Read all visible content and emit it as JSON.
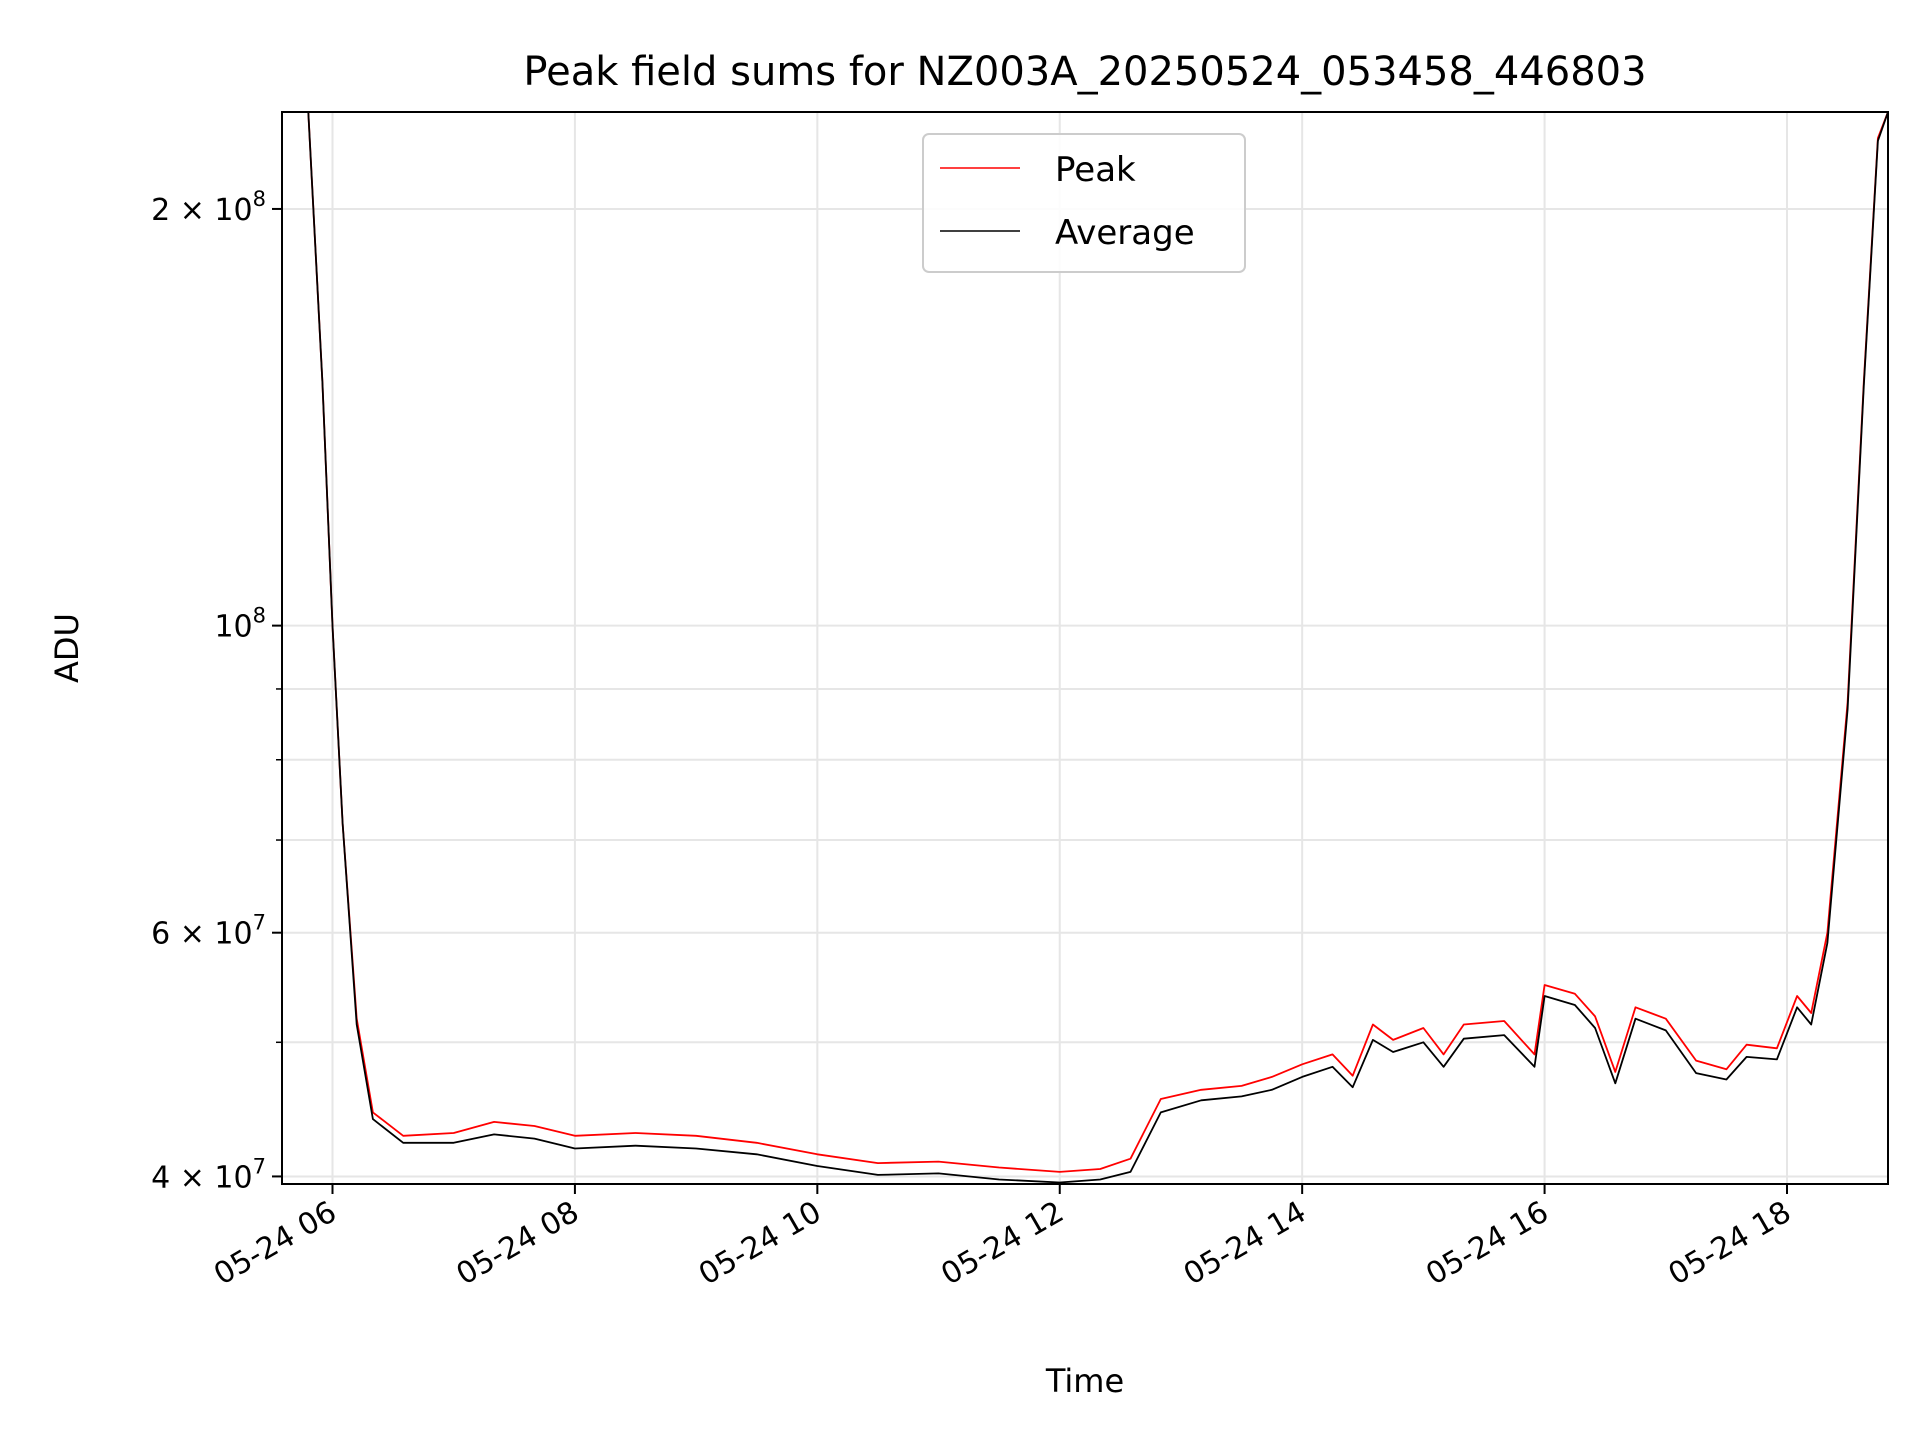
{
  "chart_data": {
    "type": "line",
    "title": "Peak field sums for NZ003A_20250524_053458_446803",
    "xlabel": "Time",
    "ylabel": "ADU",
    "x_scale": "time",
    "y_scale": "log",
    "xlim": [
      "2025-05-24 05:35",
      "2025-05-24 18:50"
    ],
    "ylim": [
      39500000,
      235000000
    ],
    "x_ticks": [
      {
        "value": "2025-05-24 06:00",
        "label": "05-24 06"
      },
      {
        "value": "2025-05-24 08:00",
        "label": "05-24 08"
      },
      {
        "value": "2025-05-24 10:00",
        "label": "05-24 10"
      },
      {
        "value": "2025-05-24 12:00",
        "label": "05-24 12"
      },
      {
        "value": "2025-05-24 14:00",
        "label": "05-24 14"
      },
      {
        "value": "2025-05-24 16:00",
        "label": "05-24 16"
      },
      {
        "value": "2025-05-24 18:00",
        "label": "05-24 18"
      }
    ],
    "y_ticks": [
      {
        "value": 40000000,
        "base": "4 × 10",
        "exp": "7"
      },
      {
        "value": 60000000,
        "base": "6 × 10",
        "exp": "7"
      },
      {
        "value": 100000000,
        "base": "10",
        "exp": "8"
      },
      {
        "value": 200000000,
        "base": "2 × 10",
        "exp": "8"
      }
    ],
    "y_minor_ticks": [
      50000000,
      70000000,
      80000000,
      90000000
    ],
    "grid": true,
    "legend_position": "top-center",
    "series": [
      {
        "name": "Peak",
        "color": "#ff0000",
        "points": [
          [
            "2025-05-24 05:35",
            235000000
          ],
          [
            "2025-05-24 05:48",
            235000000
          ],
          [
            "2025-05-24 05:55",
            150000000
          ],
          [
            "2025-05-24 06:00",
            100000000
          ],
          [
            "2025-05-24 06:05",
            72000000
          ],
          [
            "2025-05-24 06:12",
            52000000
          ],
          [
            "2025-05-24 06:20",
            44500000
          ],
          [
            "2025-05-24 06:35",
            42800000
          ],
          [
            "2025-05-24 07:00",
            43000000
          ],
          [
            "2025-05-24 07:20",
            43800000
          ],
          [
            "2025-05-24 07:40",
            43500000
          ],
          [
            "2025-05-24 08:00",
            42800000
          ],
          [
            "2025-05-24 08:30",
            43000000
          ],
          [
            "2025-05-24 09:00",
            42800000
          ],
          [
            "2025-05-24 09:30",
            42300000
          ],
          [
            "2025-05-24 10:00",
            41500000
          ],
          [
            "2025-05-24 10:30",
            40900000
          ],
          [
            "2025-05-24 11:00",
            41000000
          ],
          [
            "2025-05-24 11:30",
            40600000
          ],
          [
            "2025-05-24 12:00",
            40300000
          ],
          [
            "2025-05-24 12:20",
            40500000
          ],
          [
            "2025-05-24 12:35",
            41200000
          ],
          [
            "2025-05-24 12:50",
            45500000
          ],
          [
            "2025-05-24 13:10",
            46200000
          ],
          [
            "2025-05-24 13:30",
            46500000
          ],
          [
            "2025-05-24 13:45",
            47200000
          ],
          [
            "2025-05-24 14:00",
            48200000
          ],
          [
            "2025-05-24 14:15",
            49000000
          ],
          [
            "2025-05-24 14:25",
            47300000
          ],
          [
            "2025-05-24 14:35",
            51500000
          ],
          [
            "2025-05-24 14:45",
            50200000
          ],
          [
            "2025-05-24 15:00",
            51200000
          ],
          [
            "2025-05-24 15:10",
            49000000
          ],
          [
            "2025-05-24 15:20",
            51500000
          ],
          [
            "2025-05-24 15:40",
            51800000
          ],
          [
            "2025-05-24 15:55",
            49000000
          ],
          [
            "2025-05-24 16:00",
            55000000
          ],
          [
            "2025-05-24 16:15",
            54200000
          ],
          [
            "2025-05-24 16:25",
            52200000
          ],
          [
            "2025-05-24 16:35",
            47600000
          ],
          [
            "2025-05-24 16:45",
            53000000
          ],
          [
            "2025-05-24 17:00",
            52000000
          ],
          [
            "2025-05-24 17:15",
            48500000
          ],
          [
            "2025-05-24 17:30",
            47800000
          ],
          [
            "2025-05-24 17:40",
            49800000
          ],
          [
            "2025-05-24 17:55",
            49500000
          ],
          [
            "2025-05-24 18:05",
            54000000
          ],
          [
            "2025-05-24 18:12",
            52500000
          ],
          [
            "2025-05-24 18:20",
            60000000
          ],
          [
            "2025-05-24 18:30",
            88000000
          ],
          [
            "2025-05-24 18:38",
            150000000
          ],
          [
            "2025-05-24 18:45",
            225000000
          ],
          [
            "2025-05-24 18:50",
            235000000
          ]
        ]
      },
      {
        "name": "Average",
        "color": "#000000",
        "points": [
          [
            "2025-05-24 05:35",
            235000000
          ],
          [
            "2025-05-24 05:48",
            235000000
          ],
          [
            "2025-05-24 05:55",
            150000000
          ],
          [
            "2025-05-24 06:00",
            100000000
          ],
          [
            "2025-05-24 06:05",
            72000000
          ],
          [
            "2025-05-24 06:12",
            51500000
          ],
          [
            "2025-05-24 06:20",
            44000000
          ],
          [
            "2025-05-24 06:35",
            42300000
          ],
          [
            "2025-05-24 07:00",
            42300000
          ],
          [
            "2025-05-24 07:20",
            42900000
          ],
          [
            "2025-05-24 07:40",
            42600000
          ],
          [
            "2025-05-24 08:00",
            41900000
          ],
          [
            "2025-05-24 08:30",
            42100000
          ],
          [
            "2025-05-24 09:00",
            41900000
          ],
          [
            "2025-05-24 09:30",
            41500000
          ],
          [
            "2025-05-24 10:00",
            40700000
          ],
          [
            "2025-05-24 10:30",
            40100000
          ],
          [
            "2025-05-24 11:00",
            40200000
          ],
          [
            "2025-05-24 11:30",
            39800000
          ],
          [
            "2025-05-24 12:00",
            39600000
          ],
          [
            "2025-05-24 12:20",
            39800000
          ],
          [
            "2025-05-24 12:35",
            40300000
          ],
          [
            "2025-05-24 12:50",
            44500000
          ],
          [
            "2025-05-24 13:10",
            45400000
          ],
          [
            "2025-05-24 13:30",
            45700000
          ],
          [
            "2025-05-24 13:45",
            46200000
          ],
          [
            "2025-05-24 14:00",
            47200000
          ],
          [
            "2025-05-24 14:15",
            48000000
          ],
          [
            "2025-05-24 14:25",
            46400000
          ],
          [
            "2025-05-24 14:35",
            50200000
          ],
          [
            "2025-05-24 14:45",
            49200000
          ],
          [
            "2025-05-24 15:00",
            50000000
          ],
          [
            "2025-05-24 15:10",
            48000000
          ],
          [
            "2025-05-24 15:20",
            50300000
          ],
          [
            "2025-05-24 15:40",
            50600000
          ],
          [
            "2025-05-24 15:55",
            48000000
          ],
          [
            "2025-05-24 16:00",
            54000000
          ],
          [
            "2025-05-24 16:15",
            53200000
          ],
          [
            "2025-05-24 16:25",
            51200000
          ],
          [
            "2025-05-24 16:35",
            46700000
          ],
          [
            "2025-05-24 16:45",
            52000000
          ],
          [
            "2025-05-24 17:00",
            51000000
          ],
          [
            "2025-05-24 17:15",
            47500000
          ],
          [
            "2025-05-24 17:30",
            47000000
          ],
          [
            "2025-05-24 17:40",
            48800000
          ],
          [
            "2025-05-24 17:55",
            48600000
          ],
          [
            "2025-05-24 18:05",
            53000000
          ],
          [
            "2025-05-24 18:12",
            51500000
          ],
          [
            "2025-05-24 18:20",
            59000000
          ],
          [
            "2025-05-24 18:30",
            87000000
          ],
          [
            "2025-05-24 18:38",
            149000000
          ],
          [
            "2025-05-24 18:45",
            224000000
          ],
          [
            "2025-05-24 18:50",
            235000000
          ]
        ]
      }
    ]
  }
}
